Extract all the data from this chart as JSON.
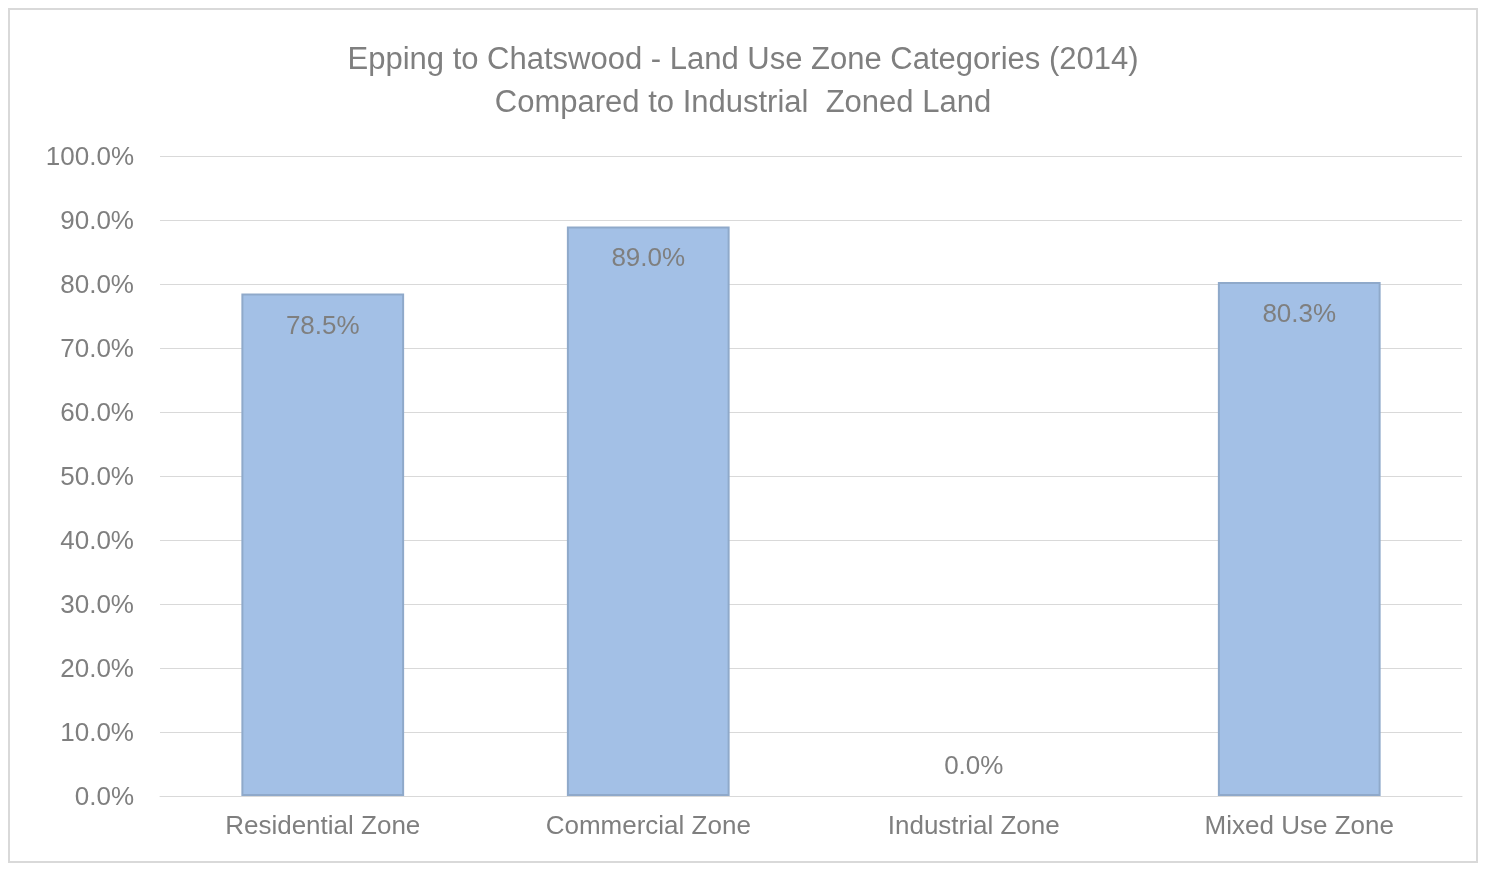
{
  "chart_data": {
    "type": "bar",
    "title": "Epping to Chatswood - Land Use Zone Categories (2014)",
    "subtitle": "Compared to Industrial  Zoned Land",
    "categories": [
      "Residential Zone",
      "Commercial Zone",
      "Industrial Zone",
      "Mixed Use Zone"
    ],
    "values": [
      78.5,
      89.0,
      0.0,
      80.3
    ],
    "value_labels": [
      "78.5%",
      "89.0%",
      "0.0%",
      "80.3%"
    ],
    "color": "#a3c0e6",
    "ylim": [
      0,
      100
    ],
    "yticks": [
      {
        "value": 0,
        "label": "0.0%"
      },
      {
        "value": 10,
        "label": "10.0%"
      },
      {
        "value": 20,
        "label": "20.0%"
      },
      {
        "value": 30,
        "label": "30.0%"
      },
      {
        "value": 40,
        "label": "40.0%"
      },
      {
        "value": 50,
        "label": "50.0%"
      },
      {
        "value": 60,
        "label": "60.0%"
      },
      {
        "value": 70,
        "label": "70.0%"
      },
      {
        "value": 80,
        "label": "80.0%"
      },
      {
        "value": 90,
        "label": "90.0%"
      },
      {
        "value": 100,
        "label": "100.0%"
      }
    ],
    "grid": "y"
  }
}
